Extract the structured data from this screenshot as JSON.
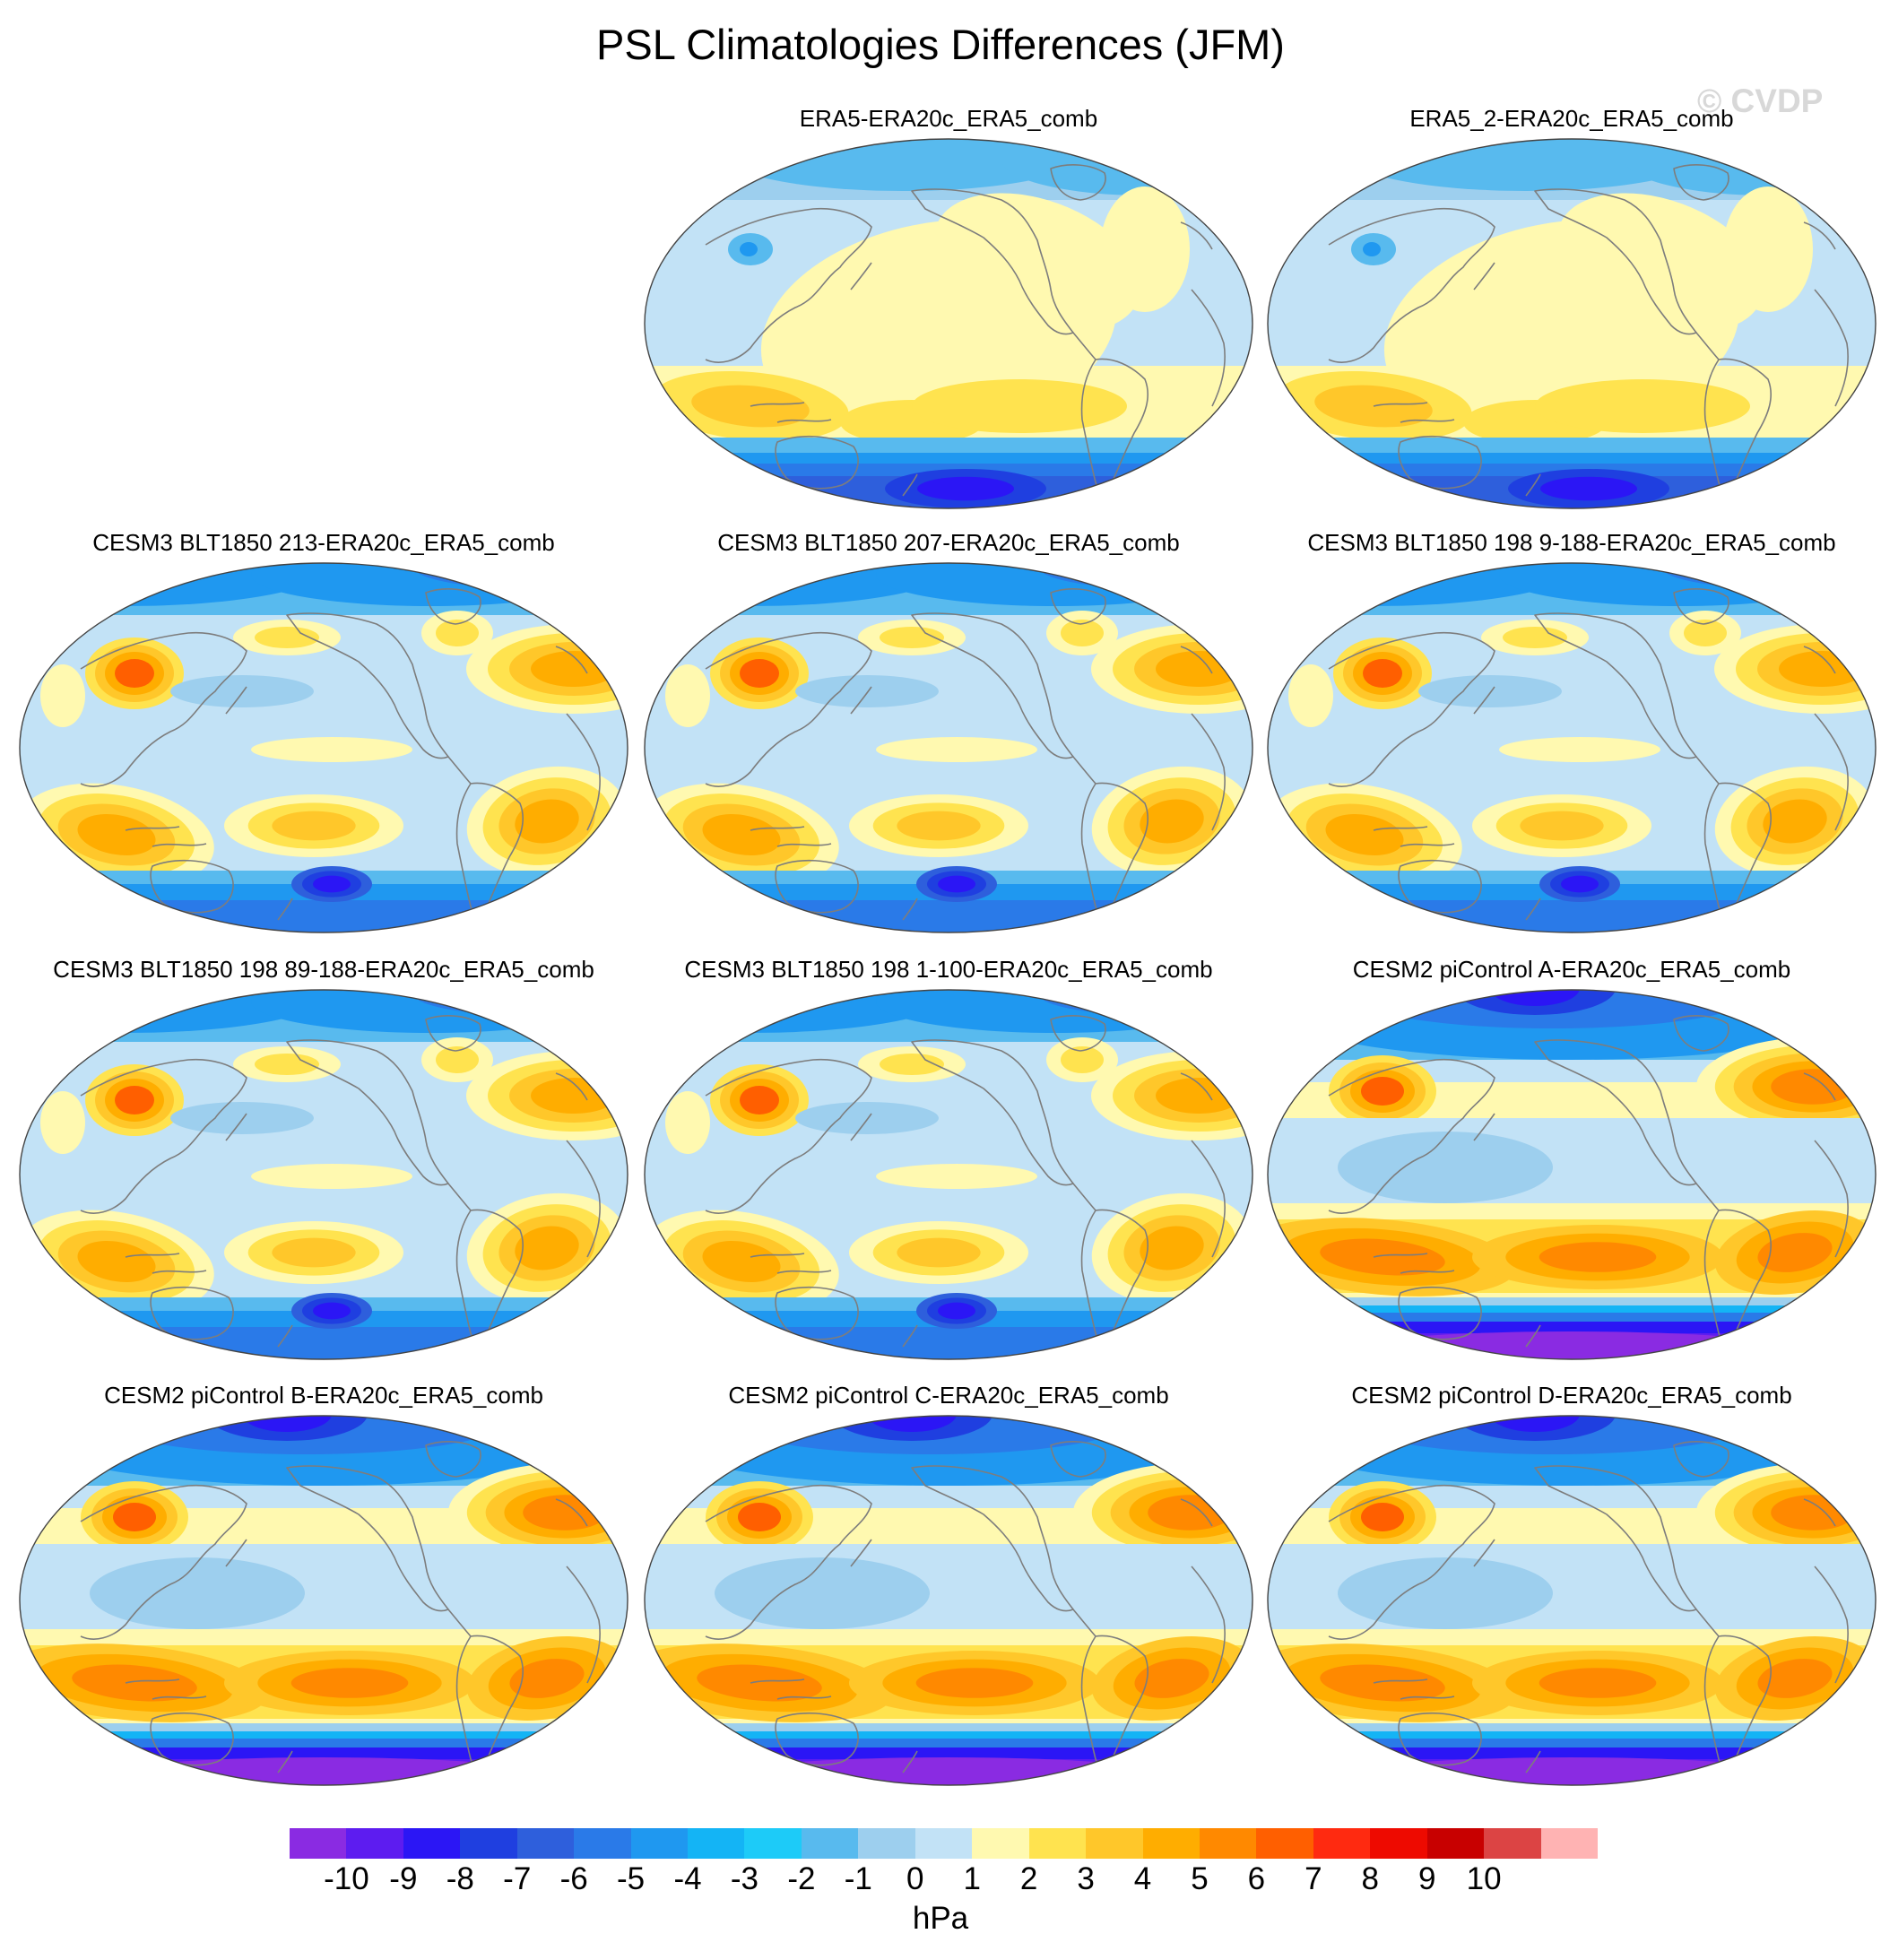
{
  "title": "PSL Climatologies Differences (JFM)",
  "watermark": "© CVDP",
  "units": "hPa",
  "colorbar": {
    "colors": [
      "#8a2be2",
      "#5d1cf0",
      "#2b16f5",
      "#1f3fe0",
      "#2e5fdc",
      "#2a7ae8",
      "#1f98f0",
      "#14b4f5",
      "#1dcbf8",
      "#58baee",
      "#9dcfee",
      "#c2e2f6",
      "#fff9b0",
      "#ffe34f",
      "#ffc72a",
      "#ffad00",
      "#ff8900",
      "#ff5f00",
      "#ff2a10",
      "#ee0a00",
      "#c80000",
      "#dc4444",
      "#ffb3b3"
    ],
    "labels": [
      "-10",
      "-9",
      "-8",
      "-7",
      "-6",
      "-5",
      "-4",
      "-3",
      "-2",
      "-1",
      "0",
      "1",
      "2",
      "3",
      "4",
      "5",
      "6",
      "7",
      "8",
      "9",
      "10"
    ]
  },
  "panels": [
    {
      "title": "ERA5-ERA20c_ERA5_comb",
      "style": "reanalysis"
    },
    {
      "title": "ERA5_2-ERA20c_ERA5_comb",
      "style": "reanalysis"
    },
    {
      "title": "CESM3 BLT1850 213-ERA20c_ERA5_comb",
      "style": "cesm3"
    },
    {
      "title": "CESM3 BLT1850 207-ERA20c_ERA5_comb",
      "style": "cesm3"
    },
    {
      "title": "CESM3 BLT1850 198 9-188-ERA20c_ERA5_comb",
      "style": "cesm3"
    },
    {
      "title": "CESM3 BLT1850 198 89-188-ERA20c_ERA5_comb",
      "style": "cesm3"
    },
    {
      "title": "CESM3 BLT1850 198 1-100-ERA20c_ERA5_comb",
      "style": "cesm3"
    },
    {
      "title": "CESM2 piControl A-ERA20c_ERA5_comb",
      "style": "cesm2"
    },
    {
      "title": "CESM2 piControl B-ERA20c_ERA5_comb",
      "style": "cesm2"
    },
    {
      "title": "CESM2 piControl C-ERA20c_ERA5_comb",
      "style": "cesm2"
    },
    {
      "title": "CESM2 piControl D-ERA20c_ERA5_comb",
      "style": "cesm2"
    }
  ]
}
